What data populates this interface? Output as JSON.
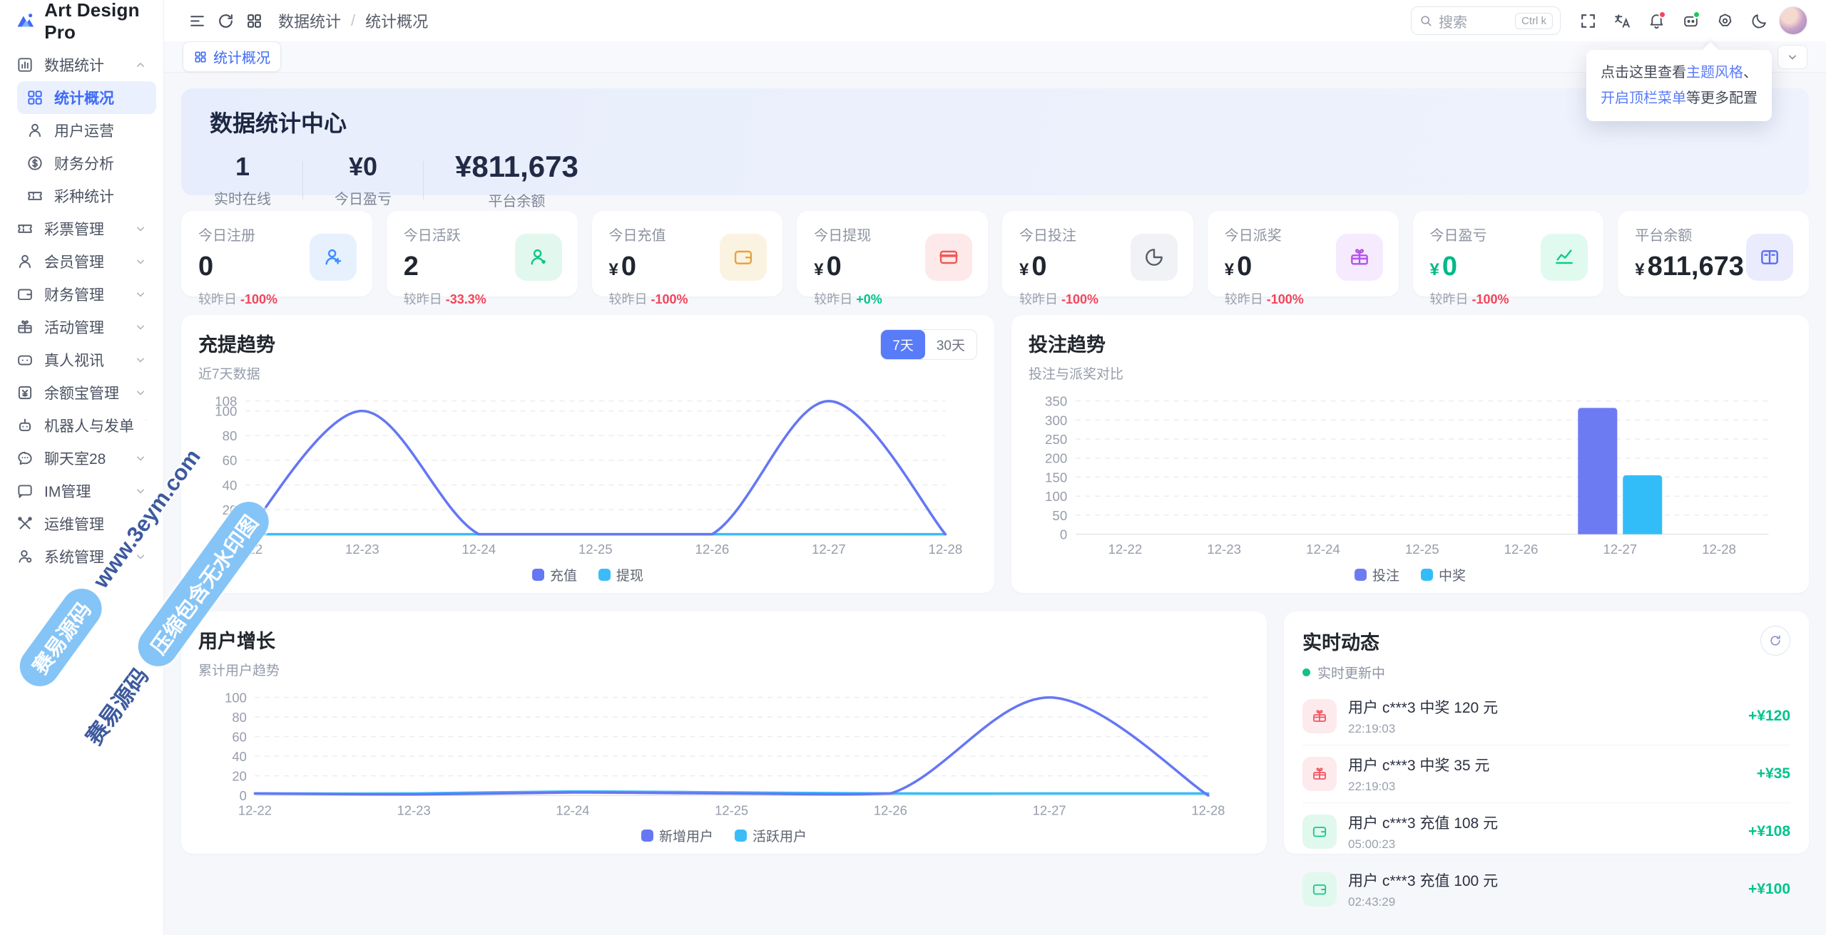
{
  "app": {
    "name": "Art Design Pro"
  },
  "header": {
    "breadcrumb": [
      "数据统计",
      "统计概况"
    ],
    "separator": "/",
    "search": {
      "placeholder": "搜索",
      "shortcut": "Ctrl k"
    },
    "icons": [
      "menu-icon",
      "refresh-icon",
      "apps-icon",
      "fullscreen-icon",
      "translate-icon",
      "bell-icon",
      "assistant-icon",
      "settings-icon",
      "moon-icon",
      "avatar"
    ]
  },
  "tabbar": {
    "active_tab": "统计概况"
  },
  "tooltip": {
    "line1_pre": "点击这里查看",
    "link1": "主题风格",
    "line1_post": "、",
    "link2": "开启顶栏菜单",
    "line2_post": "等更多配置"
  },
  "sidebar": {
    "group": {
      "icon": "bar-chart",
      "label": "数据统计",
      "expanded": true,
      "children": [
        {
          "icon": "grid",
          "label": "统计概况",
          "active": true
        },
        {
          "icon": "user",
          "label": "用户运营"
        },
        {
          "icon": "dollar-circle",
          "label": "财务分析"
        },
        {
          "icon": "ticket",
          "label": "彩种统计"
        }
      ]
    },
    "items": [
      {
        "icon": "ticket",
        "label": "彩票管理",
        "chevron": true
      },
      {
        "icon": "user",
        "label": "会员管理",
        "chevron": true
      },
      {
        "icon": "wallet",
        "label": "财务管理",
        "chevron": true
      },
      {
        "icon": "gift",
        "label": "活动管理",
        "chevron": true
      },
      {
        "icon": "gamepad",
        "label": "真人视讯",
        "chevron": true
      },
      {
        "icon": "money-box",
        "label": "余额宝管理",
        "chevron": true
      },
      {
        "icon": "robot",
        "label": "机器人与发单",
        "chevron": true
      },
      {
        "icon": "chat",
        "label": "聊天室28",
        "chevron": true
      },
      {
        "icon": "message",
        "label": "IM管理",
        "chevron": true
      },
      {
        "icon": "tools",
        "label": "运维管理",
        "chevron": false
      },
      {
        "icon": "user-gear",
        "label": "系统管理",
        "chevron": true
      }
    ]
  },
  "hero": {
    "title": "数据统计中心",
    "stats": [
      {
        "value": "1",
        "label": "实时在线",
        "big": false
      },
      {
        "value": "¥0",
        "label": "今日盈亏",
        "big": false
      },
      {
        "value": "¥811,673",
        "label": "平台余额",
        "big": true
      }
    ]
  },
  "stat_cards": [
    {
      "label": "今日注册",
      "prefix": "",
      "value": "0",
      "value_color": "",
      "compare": "较昨日",
      "delta": "-100%",
      "delta_tone": "red",
      "icon": "user-add",
      "icon_bg": "#e7f1fe",
      "icon_color": "#3f8cfe"
    },
    {
      "label": "今日活跃",
      "prefix": "",
      "value": "2",
      "value_color": "",
      "compare": "较昨日",
      "delta": "-33.3%",
      "delta_tone": "red",
      "icon": "user-check",
      "icon_bg": "#e2f8ee",
      "icon_color": "#11c686"
    },
    {
      "label": "今日充值",
      "prefix": "¥",
      "value": "0",
      "value_color": "",
      "compare": "较昨日",
      "delta": "-100%",
      "delta_tone": "red",
      "icon": "wallet",
      "icon_bg": "#fbf3e1",
      "icon_color": "#e6a23c"
    },
    {
      "label": "今日提现",
      "prefix": "¥",
      "value": "0",
      "value_color": "",
      "compare": "较昨日",
      "delta": "+0%",
      "delta_tone": "green",
      "icon": "card",
      "icon_bg": "#fde9e9",
      "icon_color": "#f15656"
    },
    {
      "label": "今日投注",
      "prefix": "¥",
      "value": "0",
      "value_color": "",
      "compare": "较昨日",
      "delta": "-100%",
      "delta_tone": "red",
      "icon": "pie",
      "icon_bg": "#f1f2f5",
      "icon_color": "#555c68"
    },
    {
      "label": "今日派奖",
      "prefix": "¥",
      "value": "0",
      "value_color": "",
      "compare": "较昨日",
      "delta": "-100%",
      "delta_tone": "red",
      "icon": "gift",
      "icon_bg": "#f6eafe",
      "icon_color": "#b254e8"
    },
    {
      "label": "今日盈亏",
      "prefix": "¥",
      "value": "0",
      "value_color": "green",
      "compare": "较昨日",
      "delta": "-100%",
      "delta_tone": "red",
      "icon": "trend",
      "icon_bg": "#e0faf0",
      "icon_color": "#10c98d"
    },
    {
      "label": "平台余额",
      "prefix": "¥",
      "value": "811,673",
      "value_color": "",
      "compare": "",
      "delta": "",
      "delta_tone": "",
      "icon": "bank",
      "icon_bg": "#eaecfd",
      "icon_color": "#5a6cf3"
    }
  ],
  "chart_data": [
    {
      "type": "line",
      "title": "充提趋势",
      "subtitle": "近7天数据",
      "toggle": [
        "7天",
        "30天"
      ],
      "toggle_active": 0,
      "x": [
        "12-22",
        "12-23",
        "12-24",
        "12-25",
        "12-26",
        "12-27",
        "12-28"
      ],
      "ylim": [
        0,
        108
      ],
      "yticks": [
        0,
        20,
        40,
        60,
        80,
        100,
        108
      ],
      "grid": true,
      "legend_position": "bottom",
      "series": [
        {
          "name": "充值",
          "color": "#6577f3",
          "values": [
            0,
            100,
            0,
            0,
            0,
            108,
            0
          ]
        },
        {
          "name": "提现",
          "color": "#3bbcf9",
          "values": [
            0,
            0,
            0,
            0,
            0,
            0,
            0
          ]
        }
      ]
    },
    {
      "type": "bar",
      "title": "投注趋势",
      "subtitle": "投注与派奖对比",
      "x": [
        "12-22",
        "12-23",
        "12-24",
        "12-25",
        "12-26",
        "12-27",
        "12-28"
      ],
      "ylim": [
        0,
        350
      ],
      "yticks": [
        0,
        50,
        100,
        150,
        200,
        250,
        300,
        350
      ],
      "grid": true,
      "legend_position": "bottom",
      "series": [
        {
          "name": "投注",
          "color": "#6d7bf3",
          "values": [
            0,
            0,
            0,
            0,
            0,
            332,
            0
          ]
        },
        {
          "name": "中奖",
          "color": "#33bdf8",
          "values": [
            0,
            0,
            0,
            0,
            0,
            155,
            0
          ]
        }
      ]
    },
    {
      "type": "line",
      "title": "用户增长",
      "subtitle": "累计用户趋势",
      "x": [
        "12-22",
        "12-23",
        "12-24",
        "12-25",
        "12-26",
        "12-27",
        "12-28"
      ],
      "ylim": [
        0,
        100
      ],
      "yticks": [
        0,
        20,
        40,
        60,
        80,
        100
      ],
      "grid": true,
      "legend_position": "bottom",
      "series": [
        {
          "name": "新增用户",
          "color": "#6577f3",
          "values": [
            2,
            1,
            3,
            2,
            2,
            100,
            0
          ]
        },
        {
          "name": "活跃用户",
          "color": "#3bbcf9",
          "values": [
            2,
            2,
            4,
            3,
            2,
            2,
            2
          ]
        }
      ]
    }
  ],
  "activity": {
    "title": "实时动态",
    "status": "实时更新中",
    "items": [
      {
        "icon": "gift",
        "tone": "red",
        "text": "用户 c***3 中奖 120 元",
        "time": "22:19:03",
        "amount": "+¥120"
      },
      {
        "icon": "gift",
        "tone": "red",
        "text": "用户 c***3 中奖 35 元",
        "time": "22:19:03",
        "amount": "+¥35"
      },
      {
        "icon": "wallet",
        "tone": "green",
        "text": "用户 c***3 充值 108 元",
        "time": "05:00:23",
        "amount": "+¥108"
      },
      {
        "icon": "wallet",
        "tone": "green",
        "text": "用户 c***3 充值 100 元",
        "time": "02:43:29",
        "amount": "+¥100"
      }
    ]
  },
  "watermark": {
    "pill1": "赛易源码",
    "text1": "www.3eym.com",
    "text2": "赛易源码",
    "pill2": "压缩包含无水印图"
  },
  "colors": {
    "primary": "#3f6af6",
    "accent_violet": "#6577f3",
    "accent_cyan": "#3bbcf9",
    "red": "#f3455a",
    "green": "#00c48c"
  }
}
